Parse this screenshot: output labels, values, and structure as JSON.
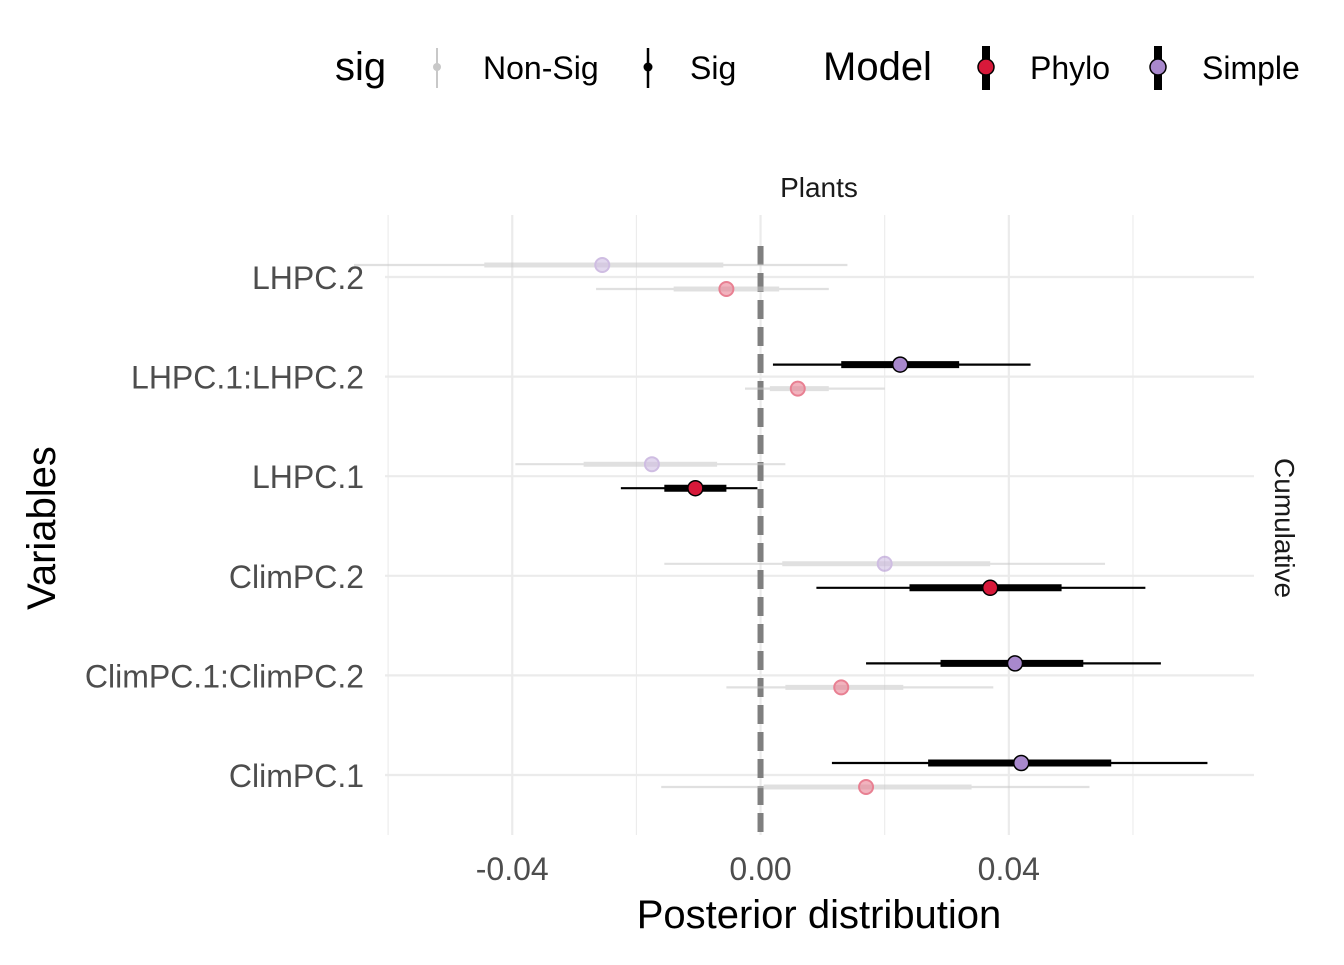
{
  "legend": {
    "sig_title": "sig",
    "sig_items": [
      "Non-Sig",
      "Sig"
    ],
    "model_title": "Model",
    "model_items": [
      "Phylo",
      "Simple"
    ]
  },
  "colors": {
    "phylo": "#d7193a",
    "simple": "#a888cc",
    "sig_line": "#000000",
    "nonsig_line": "#c8c8c8",
    "zero_line": "#7f7f7f",
    "grid": "#ebebeb",
    "tick_text": "#4d4d4d"
  },
  "chart_data": {
    "type": "scatter",
    "subtype": "pointinterval",
    "facet_top": "Plants",
    "facet_right": "Cumulative",
    "xlabel": "Posterior distribution",
    "ylabel": "Variables",
    "xlim": [
      -0.0605,
      0.0795
    ],
    "x_ticks": [
      -0.04,
      0.0,
      0.04
    ],
    "x_tick_labels": [
      "-0.04",
      "0.00",
      "0.04"
    ],
    "categories": [
      "ClimPC.1",
      "ClimPC.1:ClimPC.2",
      "ClimPC.2",
      "LHPC.1",
      "LHPC.1:LHPC.2",
      "LHPC.2"
    ],
    "reference_line": 0.0,
    "legend_position": "top",
    "grid": true,
    "series": [
      {
        "name": "Phylo",
        "points": [
          {
            "variable": "ClimPC.1",
            "estimate": 0.017,
            "inner": [
              0.0005,
              0.034
            ],
            "outer": [
              -0.016,
              0.053
            ],
            "sig": "Non-Sig"
          },
          {
            "variable": "ClimPC.1:ClimPC.2",
            "estimate": 0.013,
            "inner": [
              0.004,
              0.023
            ],
            "outer": [
              -0.0055,
              0.0375
            ],
            "sig": "Non-Sig"
          },
          {
            "variable": "ClimPC.2",
            "estimate": 0.037,
            "inner": [
              0.024,
              0.0485
            ],
            "outer": [
              0.009,
              0.062
            ],
            "sig": "Sig"
          },
          {
            "variable": "LHPC.1",
            "estimate": -0.0105,
            "inner": [
              -0.0155,
              -0.0055
            ],
            "outer": [
              -0.0225,
              -0.0005
            ],
            "sig": "Sig"
          },
          {
            "variable": "LHPC.1:LHPC.2",
            "estimate": 0.006,
            "inner": [
              0.0015,
              0.011
            ],
            "outer": [
              -0.0025,
              0.02
            ],
            "sig": "Non-Sig"
          },
          {
            "variable": "LHPC.2",
            "estimate": -0.0055,
            "inner": [
              -0.014,
              0.003
            ],
            "outer": [
              -0.0265,
              0.011
            ],
            "sig": "Non-Sig"
          }
        ]
      },
      {
        "name": "Simple",
        "points": [
          {
            "variable": "ClimPC.1",
            "estimate": 0.042,
            "inner": [
              0.027,
              0.0565
            ],
            "outer": [
              0.0115,
              0.072
            ],
            "sig": "Sig"
          },
          {
            "variable": "ClimPC.1:ClimPC.2",
            "estimate": 0.041,
            "inner": [
              0.029,
              0.052
            ],
            "outer": [
              0.017,
              0.0645
            ],
            "sig": "Sig"
          },
          {
            "variable": "ClimPC.2",
            "estimate": 0.02,
            "inner": [
              0.0035,
              0.037
            ],
            "outer": [
              -0.0155,
              0.0555
            ],
            "sig": "Non-Sig"
          },
          {
            "variable": "LHPC.1",
            "estimate": -0.0175,
            "inner": [
              -0.0285,
              -0.007
            ],
            "outer": [
              -0.0395,
              0.004
            ],
            "sig": "Non-Sig"
          },
          {
            "variable": "LHPC.1:LHPC.2",
            "estimate": 0.0225,
            "inner": [
              0.013,
              0.032
            ],
            "outer": [
              0.002,
              0.0435
            ],
            "sig": "Sig"
          },
          {
            "variable": "LHPC.2",
            "estimate": -0.0255,
            "inner": [
              -0.0445,
              -0.006
            ],
            "outer": [
              -0.0655,
              0.014
            ],
            "sig": "Non-Sig"
          }
        ]
      }
    ]
  }
}
